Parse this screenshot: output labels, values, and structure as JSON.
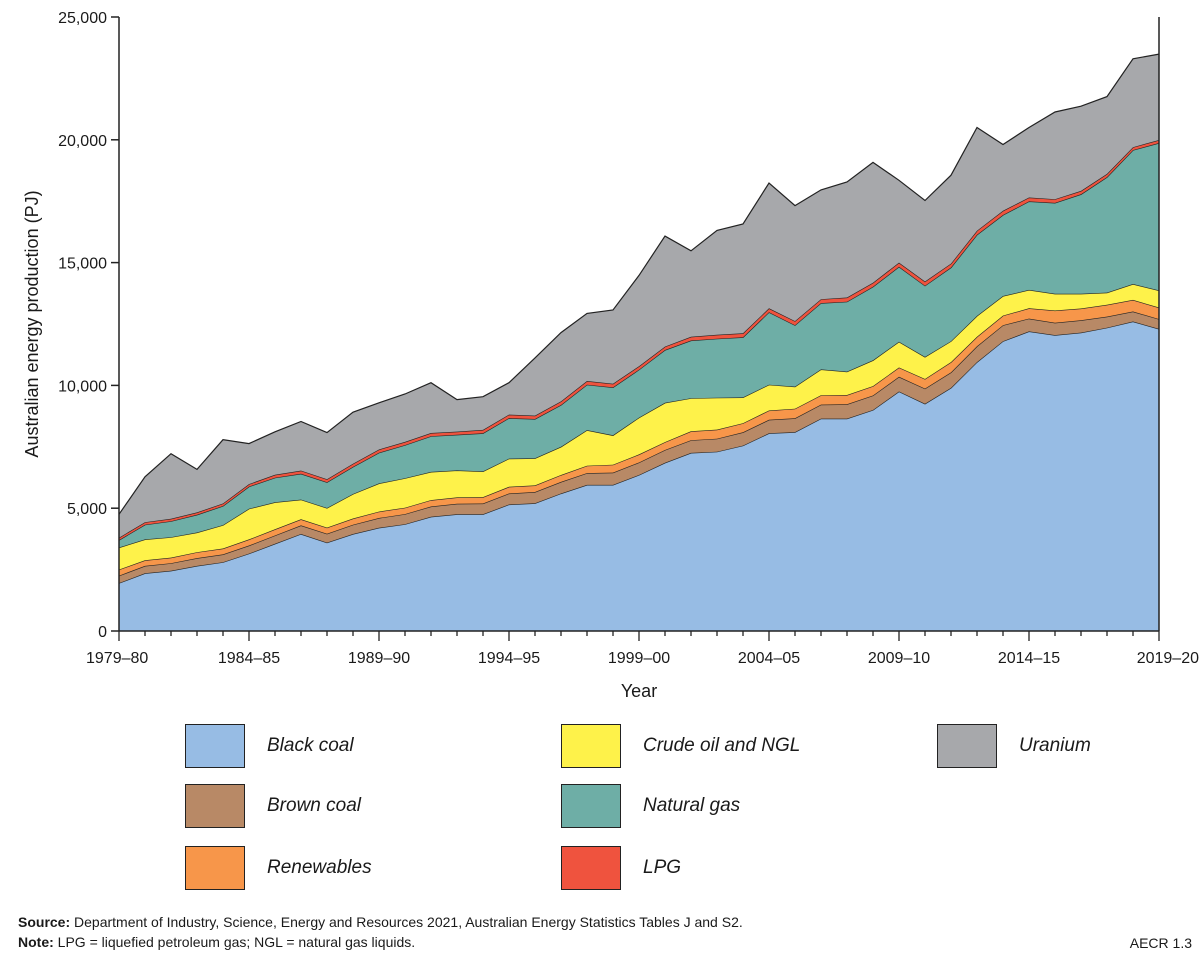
{
  "chart_data": {
    "type": "area",
    "stacked": true,
    "title": "",
    "xlabel": "Year",
    "ylabel": "Australian energy production (PJ)",
    "ylim": [
      0,
      25000
    ],
    "yticks": [
      0,
      5000,
      10000,
      15000,
      20000,
      25000
    ],
    "ytick_labels": [
      "0",
      "5,000",
      "10,000",
      "15,000",
      "20,000",
      "25,000"
    ],
    "xtick_labels": [
      "1979–80",
      "1984–85",
      "1989–90",
      "1994–95",
      "1999–00",
      "2004–05",
      "2009–10",
      "2014–15",
      "2019–20"
    ],
    "x": [
      "1979–80",
      "1980–81",
      "1981–82",
      "1982–83",
      "1983–84",
      "1984–85",
      "1985–86",
      "1986–87",
      "1987–88",
      "1988–89",
      "1989–90",
      "1990–91",
      "1991–92",
      "1992–93",
      "1993–94",
      "1994–95",
      "1995–96",
      "1996–97",
      "1997–98",
      "1998–99",
      "1999–00",
      "2000–01",
      "2001–02",
      "2002–03",
      "2003–04",
      "2004–05",
      "2005–06",
      "2006–07",
      "2007–08",
      "2008–09",
      "2009–10",
      "2010–11",
      "2011–12",
      "2012–13",
      "2013–14",
      "2014–15",
      "2015–16",
      "2016–17",
      "2017–18",
      "2018–19",
      "2019–20"
    ],
    "series": [
      {
        "name": "Black coal",
        "color": "#97bce4",
        "values": [
          1950,
          2350,
          2450,
          2650,
          2800,
          3150,
          3550,
          3950,
          3600,
          3950,
          4200,
          4350,
          4650,
          4750,
          4750,
          5150,
          5200,
          5600,
          5950,
          5950,
          6350,
          6850,
          7250,
          7300,
          7550,
          8050,
          8100,
          8650,
          8650,
          9000,
          9750,
          9250,
          9900,
          10950,
          11800,
          12200,
          12050,
          12150,
          12350,
          12600,
          12300
        ]
      },
      {
        "name": "Brown coal",
        "color": "#b88966",
        "values": [
          300,
          300,
          310,
          320,
          320,
          330,
          340,
          350,
          360,
          380,
          400,
          410,
          420,
          430,
          440,
          450,
          460,
          470,
          480,
          500,
          510,
          520,
          520,
          530,
          540,
          550,
          560,
          570,
          580,
          590,
          600,
          620,
          630,
          640,
          650,
          520,
          500,
          500,
          450,
          410,
          400
        ]
      },
      {
        "name": "Renewables",
        "color": "#f7964a",
        "values": [
          250,
          230,
          230,
          240,
          240,
          250,
          250,
          250,
          250,
          250,
          260,
          260,
          260,
          260,
          260,
          270,
          270,
          280,
          300,
          320,
          330,
          320,
          360,
          370,
          370,
          380,
          390,
          380,
          380,
          380,
          380,
          390,
          420,
          390,
          390,
          420,
          500,
          480,
          480,
          470,
          470
        ]
      },
      {
        "name": "Crude oil and NGL",
        "color": "#fef24a",
        "values": [
          900,
          850,
          830,
          800,
          950,
          1250,
          1100,
          800,
          800,
          1000,
          1150,
          1200,
          1150,
          1100,
          1050,
          1150,
          1100,
          1150,
          1450,
          1200,
          1500,
          1600,
          1350,
          1300,
          1050,
          1050,
          900,
          1050,
          950,
          1050,
          1050,
          900,
          850,
          850,
          800,
          750,
          680,
          600,
          500,
          650,
          700
        ]
      },
      {
        "name": "Natural gas",
        "color": "#6eaea6",
        "values": [
          300,
          600,
          650,
          720,
          780,
          900,
          1000,
          1050,
          1050,
          1100,
          1250,
          1350,
          1450,
          1450,
          1550,
          1650,
          1600,
          1700,
          1850,
          1950,
          1950,
          2150,
          2350,
          2400,
          2450,
          2950,
          2500,
          2700,
          2850,
          3000,
          3050,
          2900,
          3000,
          3300,
          3300,
          3600,
          3700,
          4050,
          4700,
          5450,
          6000
        ]
      },
      {
        "name": "LPG",
        "color": "#ef533e",
        "values": [
          100,
          100,
          100,
          100,
          100,
          100,
          120,
          130,
          120,
          130,
          130,
          130,
          130,
          130,
          140,
          140,
          140,
          150,
          150,
          150,
          140,
          140,
          150,
          160,
          160,
          160,
          170,
          160,
          170,
          160,
          170,
          170,
          160,
          170,
          170,
          160,
          150,
          140,
          130,
          120,
          120
        ]
      },
      {
        "name": "Uranium",
        "color": "#a7a8ab",
        "values": [
          950,
          1850,
          2650,
          1750,
          2600,
          1650,
          1750,
          2000,
          1900,
          2100,
          1900,
          1950,
          2050,
          1300,
          1350,
          1300,
          2350,
          2800,
          2750,
          3000,
          3700,
          4500,
          3500,
          4250,
          4450,
          5100,
          4700,
          4450,
          4700,
          4900,
          3350,
          3300,
          3600,
          4200,
          2700,
          2850,
          3550,
          3450,
          3150,
          3600,
          3500
        ]
      }
    ],
    "legend_position": "bottom"
  },
  "footer": {
    "source_label": "Source:",
    "source_text": " Department of Industry, Science, Energy and Resources 2021, Australian Energy Statistics Tables J and S2.",
    "note_label": "Note:",
    "note_text": " LPG = liquefied petroleum gas; NGL = natural gas liquids.",
    "figure_id": "AECR 1.3"
  }
}
